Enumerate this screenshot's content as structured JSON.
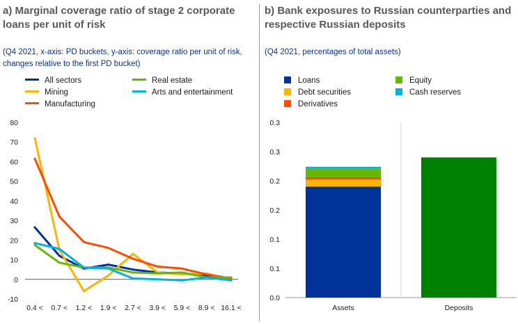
{
  "panel_a": {
    "title": "a) Marginal coverage ratio of stage 2 corporate loans per unit of risk",
    "subtitle": "(Q4 2021, x-axis: PD buckets, y-axis: coverage ratio per unit of risk, changes relative to the first PD bucket)"
  },
  "panel_b": {
    "title": "b) Bank exposures to Russian counterparties and respective Russian deposits",
    "subtitle": "(Q4 2021, percentages of total assets)"
  },
  "colors": {
    "all_sectors": "#003299",
    "mining": "#ffb400",
    "manufacturing": "#ff4b00",
    "real_estate": "#65b800",
    "arts_entertainment": "#00b1ea",
    "loans": "#003299",
    "debt_securities": "#ffb400",
    "derivatives": "#ff4b00",
    "equity": "#65b800",
    "cash_reserves": "#00b1ea",
    "deposits": "#008000"
  },
  "chart_data": [
    {
      "type": "line",
      "categories": [
        "0.4 <",
        "0.7 <",
        "1.2 <",
        "1.9 <",
        "2.7 <",
        "3.9 <",
        "5.9 <",
        "8.9 <",
        "16.1 <"
      ],
      "ylim": [
        -10,
        80
      ],
      "yticks": [
        -10,
        0,
        10,
        20,
        30,
        40,
        50,
        60,
        70,
        80
      ],
      "grid": false,
      "legend_position": "top",
      "series": [
        {
          "name": "All sectors",
          "color_key": "all_sectors",
          "values": [
            26.5,
            12,
            5.5,
            7.5,
            5,
            3.5,
            3,
            2,
            0.5
          ]
        },
        {
          "name": "Mining",
          "color_key": "mining",
          "values": [
            72,
            15,
            -6,
            2,
            13,
            3.5,
            2.5,
            3,
            0
          ]
        },
        {
          "name": "Manufacturing",
          "color_key": "manufacturing",
          "values": [
            61.5,
            32,
            19,
            16,
            10.5,
            6.5,
            5.5,
            2.5,
            0.5
          ]
        },
        {
          "name": "Real estate",
          "color_key": "real_estate",
          "values": [
            17.5,
            8.5,
            6,
            6,
            3.5,
            3,
            3.5,
            1,
            1
          ]
        },
        {
          "name": "Arts and entertainment",
          "color_key": "arts_entertainment",
          "values": [
            18.5,
            15.5,
            6,
            5.5,
            0.5,
            0,
            -0.5,
            1,
            -0.5
          ]
        }
      ]
    },
    {
      "type": "bar",
      "stacked": true,
      "categories": [
        "Assets",
        "Deposits"
      ],
      "ylim": [
        0,
        0.3
      ],
      "ytick_labels": [
        "0.3",
        "0.3",
        "0.2",
        "0.2",
        "0.1",
        "0.1",
        "0.0"
      ],
      "ytick_values": [
        0.3,
        0.25,
        0.2,
        0.15,
        0.1,
        0.05,
        0
      ],
      "grid": false,
      "legend_position": "top",
      "series": [
        {
          "name": "Loans",
          "color_key": "loans",
          "values": [
            0.19,
            null
          ]
        },
        {
          "name": "Debt securities",
          "color_key": "debt_securities",
          "values": [
            0.012,
            null
          ]
        },
        {
          "name": "Derivatives",
          "color_key": "derivatives",
          "values": [
            0.004,
            null
          ]
        },
        {
          "name": "Equity",
          "color_key": "equity",
          "values": [
            0.015,
            null
          ]
        },
        {
          "name": "Cash reserves",
          "color_key": "cash_reserves",
          "values": [
            0.003,
            null
          ]
        },
        {
          "name": "",
          "color_key": "deposits",
          "values": [
            null,
            0.24
          ]
        }
      ]
    }
  ]
}
